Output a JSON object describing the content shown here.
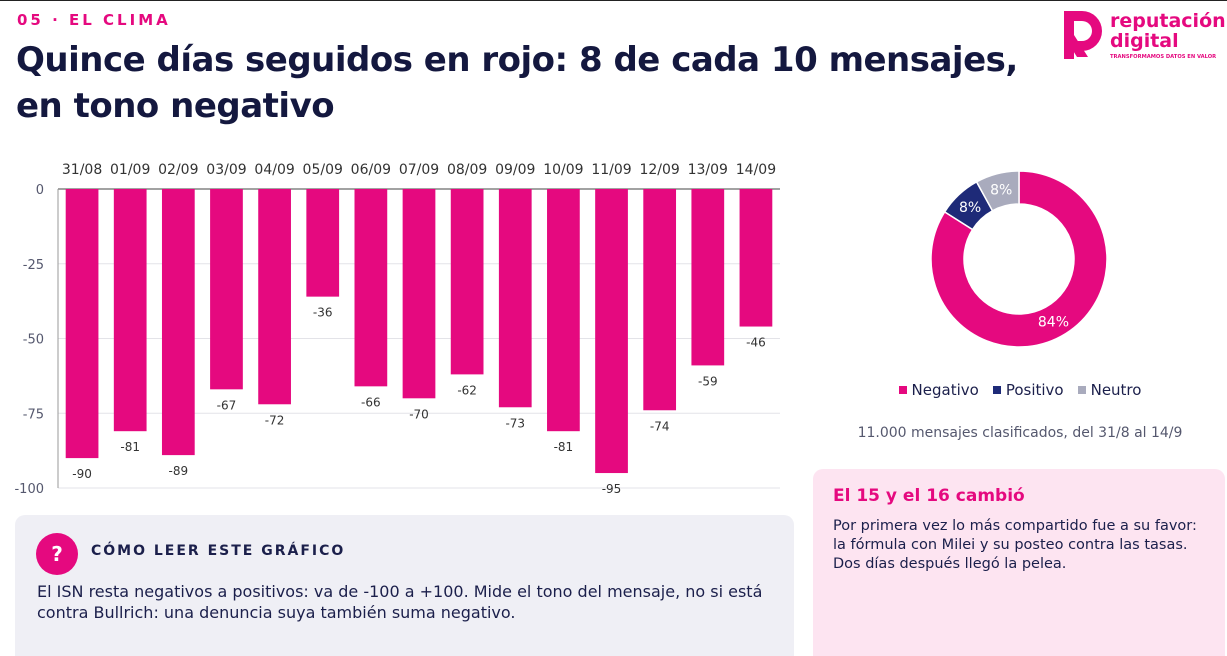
{
  "header": {
    "kicker": "05 · EL CLIMA",
    "title": "Quince días seguidos en rojo: 8 de cada 10 mensajes, en tono negativo"
  },
  "logo": {
    "line1": "reputación",
    "line2": "digital",
    "tagline": "TRANSFORMAMOS DATOS EN VALOR"
  },
  "chart_data": [
    {
      "type": "bar",
      "categories": [
        "31/08",
        "01/09",
        "02/09",
        "03/09",
        "04/09",
        "05/09",
        "06/09",
        "07/09",
        "08/09",
        "09/09",
        "10/09",
        "11/09",
        "12/09",
        "13/09",
        "14/09"
      ],
      "values": [
        -90,
        -81,
        -89,
        -67,
        -72,
        -36,
        -66,
        -70,
        -62,
        -73,
        -81,
        -95,
        -74,
        -59,
        -46
      ],
      "color": "#e5097f",
      "ylim": [
        -100,
        0
      ],
      "yticks": [
        0,
        -25,
        -50,
        -75,
        -100
      ],
      "grid": true
    },
    {
      "type": "pie",
      "categories": [
        "Negativo",
        "Positivo",
        "Neutro"
      ],
      "values": [
        84,
        8,
        8
      ],
      "value_labels": [
        "84%",
        "8%",
        "8%"
      ],
      "colors": [
        "#e5097f",
        "#1e2a78",
        "#a9abbd"
      ],
      "donut": true,
      "legend": "bottom",
      "caption": "11.000 mensajes clasificados, del 31/8 al 14/9"
    }
  ],
  "howto": {
    "icon": "?",
    "title": "CÓMO LEER ESTE GRÁFICO",
    "text": "El ISN resta negativos a positivos: va de -100 a +100. Mide el tono del mensaje, no si está contra Bullrich: una denuncia suya también suma negativo."
  },
  "note": {
    "title": "El 15 y el 16 cambió",
    "text": "Por primera vez lo más compartido fue a su favor: la fórmula con Milei y su posteo contra las tasas. Dos días después llegó la pelea."
  }
}
